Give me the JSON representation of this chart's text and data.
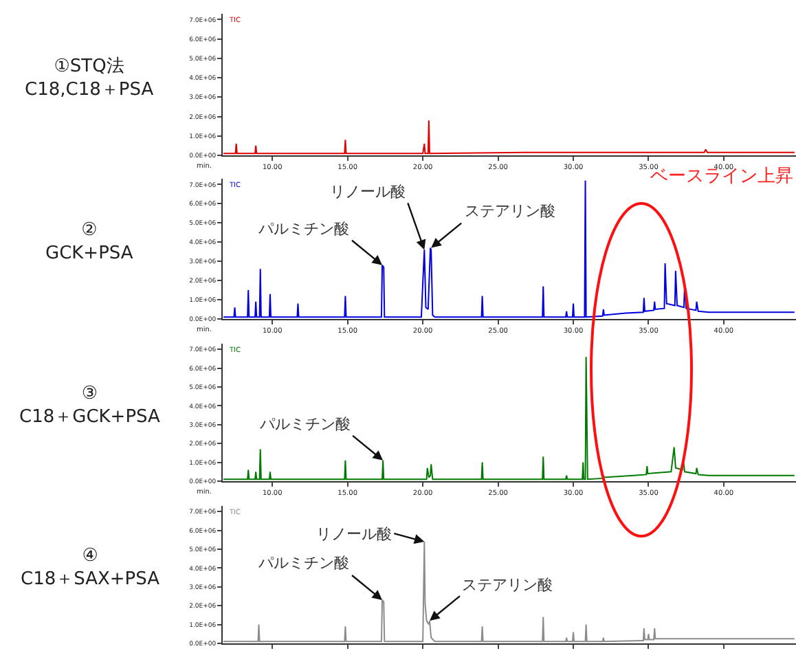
{
  "chart_data": [
    {
      "type": "line",
      "title": "①STQ法\nC18,C18＋PSA",
      "xlabel": "min.",
      "xlim": [
        6.7,
        44.8
      ],
      "ylim": [
        0,
        7300000
      ],
      "xticks": [
        {
          "value": 10,
          "label": "10.00"
        },
        {
          "value": 15,
          "label": "15.00"
        },
        {
          "value": 20,
          "label": "20.00"
        },
        {
          "value": 25,
          "label": "25.00"
        },
        {
          "value": 30,
          "label": "30.00"
        },
        {
          "value": 35,
          "label": "35.00"
        },
        {
          "value": 40,
          "label": "40.00"
        }
      ],
      "yticks": [
        {
          "value": 0,
          "label": "0.0E+00"
        },
        {
          "value": 1000000,
          "label": "1.0E+06"
        },
        {
          "value": 2000000,
          "label": "2.0E+06"
        },
        {
          "value": 3000000,
          "label": "3.0E+06"
        },
        {
          "value": 4000000,
          "label": "4.0E+06"
        },
        {
          "value": 5000000,
          "label": "5.0E+06"
        },
        {
          "value": 6000000,
          "label": "6.0E+06"
        },
        {
          "value": 7000000,
          "label": "7.0E+06"
        }
      ],
      "series": [
        {
          "name": "TIC",
          "color": "#e00000",
          "x": [
            6.75,
            7.55,
            7.6,
            7.65,
            8.85,
            8.9,
            8.95,
            14.8,
            14.85,
            14.9,
            20.0,
            20.1,
            20.15,
            20.35,
            20.4,
            20.45,
            27.0,
            38.7,
            38.8,
            38.9,
            44.7
          ],
          "values": [
            100000,
            100000,
            600000,
            100000,
            100000,
            500000,
            100000,
            100000,
            800000,
            100000,
            100000,
            600000,
            100000,
            100000,
            1800000,
            100000,
            150000,
            150000,
            300000,
            150000,
            150000
          ]
        }
      ]
    },
    {
      "type": "line",
      "title": "②\nGCK+PSA",
      "xlabel": "min.",
      "xlim": [
        6.7,
        44.8
      ],
      "ylim": [
        0,
        7300000
      ],
      "xticks": [
        {
          "value": 10,
          "label": "10.00"
        },
        {
          "value": 15,
          "label": "15.00"
        },
        {
          "value": 20,
          "label": "20.00"
        },
        {
          "value": 25,
          "label": "25.00"
        },
        {
          "value": 30,
          "label": "30.00"
        },
        {
          "value": 35,
          "label": "35.00"
        },
        {
          "value": 40,
          "label": "40.00"
        }
      ],
      "yticks": [
        {
          "value": 0,
          "label": "0.0E+00"
        },
        {
          "value": 1000000,
          "label": "1.0E+06"
        },
        {
          "value": 2000000,
          "label": "2.0E+06"
        },
        {
          "value": 3000000,
          "label": "3.0E+06"
        },
        {
          "value": 4000000,
          "label": "4.0E+06"
        },
        {
          "value": 5000000,
          "label": "5.0E+06"
        },
        {
          "value": 6000000,
          "label": "6.0E+06"
        },
        {
          "value": 7000000,
          "label": "7.0E+06"
        }
      ],
      "series": [
        {
          "name": "TIC",
          "color": "#0000e0",
          "x": [
            6.75,
            7.45,
            7.5,
            7.55,
            8.35,
            8.4,
            8.45,
            8.85,
            8.9,
            8.95,
            9.15,
            9.2,
            9.25,
            9.8,
            9.85,
            9.9,
            11.65,
            11.7,
            11.75,
            14.8,
            14.85,
            14.9,
            17.25,
            17.3,
            17.4,
            17.45,
            19.9,
            20.0,
            20.1,
            20.2,
            20.35,
            20.5,
            20.55,
            20.65,
            20.8,
            23.9,
            23.95,
            24.0,
            27.95,
            28.0,
            28.05,
            29.5,
            29.55,
            29.6,
            29.95,
            30.0,
            30.05,
            30.75,
            30.8,
            30.85,
            31.95,
            32.0,
            32.05,
            33.5,
            34.65,
            34.7,
            34.75,
            35.35,
            35.4,
            35.45,
            36.05,
            36.1,
            36.2,
            36.75,
            36.8,
            36.9,
            37.35,
            37.4,
            37.5,
            38.15,
            38.2,
            38.3,
            39.0,
            44.7
          ],
          "values": [
            100000,
            100000,
            600000,
            100000,
            100000,
            1500000,
            100000,
            100000,
            900000,
            100000,
            100000,
            2600000,
            100000,
            100000,
            1300000,
            100000,
            100000,
            800000,
            100000,
            100000,
            1200000,
            100000,
            100000,
            2800000,
            2700000,
            100000,
            100000,
            1900000,
            3600000,
            600000,
            500000,
            3700000,
            3600000,
            200000,
            100000,
            100000,
            1200000,
            100000,
            100000,
            1700000,
            100000,
            100000,
            400000,
            100000,
            100000,
            800000,
            100000,
            100000,
            7200000,
            100000,
            150000,
            500000,
            200000,
            300000,
            350000,
            1100000,
            400000,
            450000,
            900000,
            500000,
            550000,
            2900000,
            800000,
            700000,
            2500000,
            700000,
            600000,
            1700000,
            550000,
            450000,
            900000,
            400000,
            350000,
            350000
          ]
        }
      ],
      "annotations": [
        {
          "text": "パルミチン酸",
          "x": 17.3,
          "y": 2800000
        },
        {
          "text": "リノール酸",
          "x": 20.1,
          "y": 3600000
        },
        {
          "text": "ステアリン酸",
          "x": 20.55,
          "y": 3700000
        },
        "ベースライン上昇"
      ]
    },
    {
      "type": "line",
      "title": "③\nC18＋GCK+PSA",
      "xlabel": "min.",
      "xlim": [
        6.7,
        44.8
      ],
      "ylim": [
        0,
        7300000
      ],
      "xticks": [
        {
          "value": 10,
          "label": "10.00"
        },
        {
          "value": 15,
          "label": "15.00"
        },
        {
          "value": 20,
          "label": "20.00"
        },
        {
          "value": 25,
          "label": "25.00"
        },
        {
          "value": 30,
          "label": "30.00"
        },
        {
          "value": 35,
          "label": "35.00"
        },
        {
          "value": 40,
          "label": "40.00"
        }
      ],
      "yticks": [
        {
          "value": 0,
          "label": "0.0E+00"
        },
        {
          "value": 1000000,
          "label": "1.0E+06"
        },
        {
          "value": 2000000,
          "label": "2.0E+06"
        },
        {
          "value": 3000000,
          "label": "3.0E+06"
        },
        {
          "value": 4000000,
          "label": "4.0E+06"
        },
        {
          "value": 5000000,
          "label": "5.0E+06"
        },
        {
          "value": 6000000,
          "label": "6.0E+06"
        },
        {
          "value": 7000000,
          "label": "7.0E+06"
        }
      ],
      "series": [
        {
          "name": "TIC",
          "color": "#007a00",
          "x": [
            6.75,
            8.35,
            8.4,
            8.45,
            8.85,
            8.9,
            8.95,
            9.15,
            9.2,
            9.25,
            9.8,
            9.85,
            9.9,
            14.8,
            14.85,
            14.9,
            17.3,
            17.35,
            17.4,
            20.25,
            20.3,
            20.4,
            20.5,
            20.55,
            20.65,
            23.9,
            23.95,
            24.0,
            27.95,
            28.0,
            28.05,
            29.5,
            29.55,
            29.6,
            30.6,
            30.65,
            30.7,
            30.8,
            30.85,
            30.95,
            31.95,
            32.0,
            32.05,
            34.0,
            34.85,
            34.9,
            34.95,
            36.5,
            36.7,
            36.8,
            37.25,
            37.3,
            37.4,
            38.15,
            38.2,
            38.3,
            39.0,
            44.7
          ],
          "values": [
            100000,
            100000,
            600000,
            100000,
            100000,
            500000,
            100000,
            100000,
            1700000,
            100000,
            100000,
            500000,
            100000,
            100000,
            1100000,
            100000,
            100000,
            1100000,
            100000,
            100000,
            700000,
            200000,
            300000,
            900000,
            100000,
            100000,
            1000000,
            100000,
            100000,
            1300000,
            100000,
            100000,
            300000,
            100000,
            100000,
            1000000,
            100000,
            100000,
            6600000,
            100000,
            150000,
            300000,
            200000,
            300000,
            350000,
            800000,
            400000,
            500000,
            1800000,
            700000,
            600000,
            1200000,
            500000,
            400000,
            700000,
            350000,
            300000,
            300000
          ]
        }
      ],
      "annotations": [
        {
          "text": "パルミチン酸",
          "x": 17.35,
          "y": 1100000
        }
      ]
    },
    {
      "type": "line",
      "title": "④\nC18＋SAX+PSA",
      "tick_labels": "y",
      "xlim": [
        6.7,
        44.8
      ],
      "ylim": [
        0,
        7300000
      ],
      "xticks": [
        {
          "value": 10,
          "label": null
        },
        {
          "value": 15,
          "label": null
        },
        {
          "value": 20,
          "label": null
        },
        {
          "value": 25,
          "label": null
        },
        {
          "value": 30,
          "label": null
        },
        {
          "value": 35,
          "label": null
        },
        {
          "value": 40,
          "label": null
        }
      ],
      "yticks": [
        {
          "value": 0,
          "label": "0.0E+00"
        },
        {
          "value": 1000000,
          "label": "1.0E+06"
        },
        {
          "value": 2000000,
          "label": "2.0E+06"
        },
        {
          "value": 3000000,
          "label": "3.0E+06"
        },
        {
          "value": 4000000,
          "label": "4.0E+06"
        },
        {
          "value": 5000000,
          "label": "5.0E+06"
        },
        {
          "value": 6000000,
          "label": "6.0E+06"
        },
        {
          "value": 7000000,
          "label": "7.0E+06"
        }
      ],
      "series": [
        {
          "name": "TIC",
          "color": "#8c8c8c",
          "x": [
            6.75,
            9.05,
            9.1,
            9.15,
            14.8,
            14.85,
            14.9,
            17.25,
            17.3,
            17.4,
            17.45,
            20.0,
            20.1,
            20.15,
            20.25,
            20.4,
            20.45,
            20.55,
            20.8,
            23.9,
            23.95,
            24.0,
            27.95,
            28.0,
            28.05,
            29.5,
            29.55,
            29.6,
            29.95,
            30.0,
            30.05,
            30.8,
            30.85,
            30.9,
            31.95,
            32.0,
            32.05,
            34.5,
            34.65,
            34.7,
            34.75,
            34.95,
            35.0,
            35.05,
            35.35,
            35.4,
            35.45,
            44.7
          ],
          "values": [
            100000,
            100000,
            1000000,
            100000,
            100000,
            900000,
            100000,
            100000,
            2300000,
            2200000,
            100000,
            100000,
            5400000,
            2100000,
            1200000,
            1000000,
            1200000,
            300000,
            100000,
            100000,
            900000,
            100000,
            100000,
            1400000,
            100000,
            100000,
            300000,
            100000,
            100000,
            600000,
            100000,
            100000,
            1000000,
            100000,
            100000,
            300000,
            100000,
            150000,
            150000,
            800000,
            200000,
            200000,
            500000,
            200000,
            200000,
            800000,
            250000,
            250000
          ]
        }
      ],
      "annotations": [
        {
          "text": "パルミチン酸",
          "x": 17.3,
          "y": 2300000
        },
        {
          "text": "リノール酸",
          "x": 20.1,
          "y": 5400000
        },
        {
          "text": "ステアリン酸",
          "x": 20.45,
          "y": 1200000
        }
      ]
    }
  ]
}
